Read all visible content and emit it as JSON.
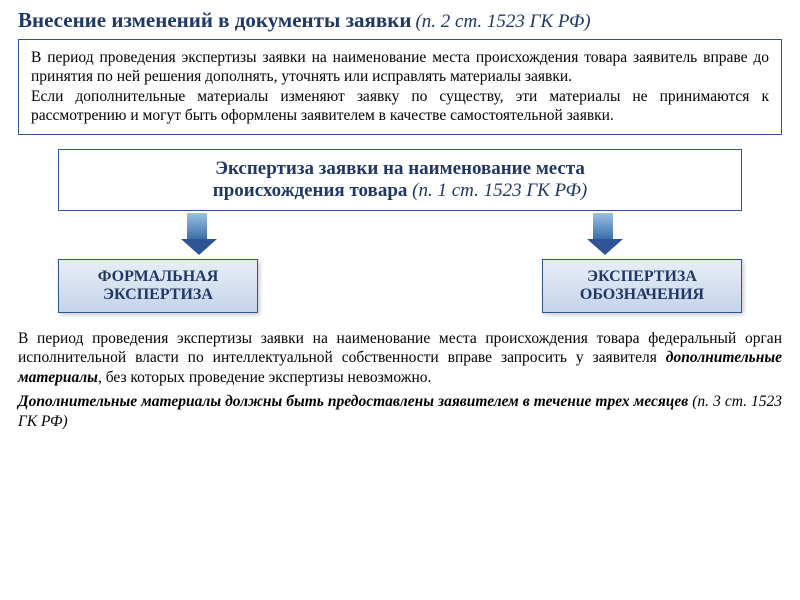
{
  "title": {
    "main": "Внесение изменений в документы заявки",
    "sub": "(п. 2 ст. 1523 ГК РФ)"
  },
  "box1": {
    "p1": "В период проведения экспертизы заявки на наименование места происхождения товара заявитель вправе до принятия по ней решения дополнять, уточнять или исправлять материалы заявки.",
    "p2": "Если дополнительные материалы изменяют заявку по существу, эти материалы не принимаются к рассмотрению и могут быть оформлены заявителем в качестве самостоятельной заявки."
  },
  "box2": {
    "line1": "Экспертиза заявки на наименование места",
    "line2_bold": "происхождения товара",
    "line2_ital": "(п. 1 ст. 1523 ГК РФ)"
  },
  "smallboxes": {
    "left_l1": "ФОРМАЛЬНАЯ",
    "left_l2": "ЭКСПЕРТИЗА",
    "right_l1": "ЭКСПЕРТИЗА",
    "right_l2": "ОБОЗНАЧЕНИЯ"
  },
  "para": {
    "t1": "В период проведения экспертизы заявки на наименование места происхождения товара федеральный орган исполнительной власти по интеллектуальной собственности вправе запросить у заявителя ",
    "em": "дополнительные материалы",
    "t2": ", без которых проведение экспертизы невозможно."
  },
  "para2": {
    "main": "Дополнительные материалы должны быть предоставлены заявителем в течение трех месяцев ",
    "cit": "(п. 3 ст. 1523 ГК РФ)"
  },
  "colors": {
    "heading": "#1f3864",
    "border": "#2f5496",
    "grad_top": "#e8eef7",
    "grad_bottom": "#c5d4ea",
    "arrow_top": "#9cc2e5",
    "arrow_bottom": "#3a6ea8"
  }
}
